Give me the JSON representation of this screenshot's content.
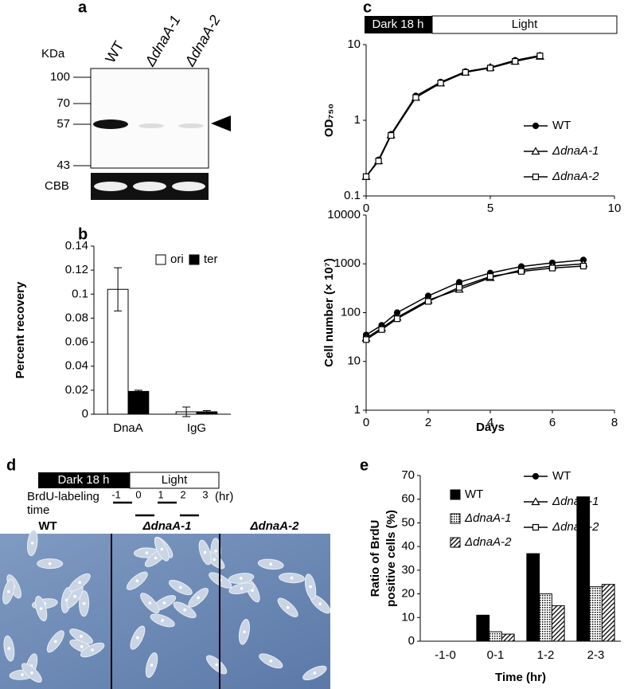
{
  "panel_labels": [
    "a",
    "b",
    "c",
    "d",
    "e"
  ],
  "blot": {
    "unit": "KDa",
    "lanes": [
      "WT",
      "ΔdnaA-1",
      "ΔdnaA-2"
    ],
    "markers": [
      100,
      70,
      57,
      43
    ],
    "loading_control": "CBB"
  },
  "schedule_c": {
    "dark": "Dark 18 h",
    "light": "Light"
  },
  "labeling": {
    "dark": "Dark 18 h",
    "light": "Light",
    "label": [
      "BrdU-labeling",
      "time"
    ],
    "times": [
      -1,
      0,
      1,
      2,
      3
    ],
    "unit": "(hr)"
  },
  "micrographs": [
    "WT",
    "ΔdnaA-1",
    "ΔdnaA-2"
  ],
  "chart_data": [
    {
      "type": "bar",
      "ylabel": "Percent recovery",
      "categories": [
        "DnaA",
        "IgG"
      ],
      "series": [
        {
          "name": "ori",
          "color": "#ffffff",
          "values": [
            0.104,
            0.002
          ],
          "errors": [
            0.018,
            0.004
          ]
        },
        {
          "name": "ter",
          "color": "#000000",
          "values": [
            0.019,
            0.002
          ],
          "errors": [
            0.001,
            0.001
          ]
        }
      ],
      "ylim": [
        0,
        0.14
      ],
      "yticks": [
        0,
        0.02,
        0.04,
        0.06,
        0.08,
        0.1,
        0.12,
        0.14
      ],
      "grid": false,
      "legend": "upper right"
    },
    {
      "type": "line",
      "ylabel": "OD₇₅₀",
      "log_y": true,
      "x": [
        0,
        0.5,
        1,
        2,
        3,
        4,
        5,
        6,
        7
      ],
      "series": [
        {
          "name": "WT",
          "color": "#000000",
          "marker": "circle",
          "values": [
            0.18,
            0.3,
            0.65,
            2.1,
            3.2,
            4.4,
            5.0,
            6.2,
            7.2
          ]
        },
        {
          "name": "ΔdnaA-1",
          "color": "#000000",
          "marker": "triangle",
          "values": [
            0.18,
            0.29,
            0.64,
            2.0,
            3.1,
            4.3,
            5.0,
            6.0,
            7.0
          ]
        },
        {
          "name": "ΔdnaA-2",
          "color": "#000000",
          "marker": "square",
          "values": [
            0.18,
            0.29,
            0.63,
            2.0,
            3.1,
            4.3,
            4.9,
            6.0,
            7.1
          ]
        }
      ],
      "xlim": [
        0,
        10
      ],
      "xticks": [
        0,
        5,
        10
      ],
      "ylim": [
        0.1,
        10
      ],
      "yticks": [
        0.1,
        1,
        10
      ],
      "grid": false,
      "legend": "lower right"
    },
    {
      "type": "line",
      "ylabel": "Cell number (× 10⁷)",
      "xlabel": "Days",
      "log_y": true,
      "x": [
        0,
        0.5,
        1,
        2,
        3,
        4,
        5,
        6,
        7
      ],
      "series": [
        {
          "name": "WT",
          "color": "#000000",
          "marker": "circle",
          "values": [
            35,
            55,
            100,
            220,
            420,
            650,
            880,
            1050,
            1200
          ]
        },
        {
          "name": "ΔdnaA-1",
          "color": "#000000",
          "marker": "triangle",
          "values": [
            30,
            48,
            80,
            180,
            300,
            520,
            750,
            900,
            1000
          ]
        },
        {
          "name": "ΔdnaA-2",
          "color": "#000000",
          "marker": "square",
          "values": [
            28,
            45,
            75,
            170,
            330,
            550,
            700,
            820,
            900
          ]
        }
      ],
      "xlim": [
        0,
        8
      ],
      "xticks": [
        0,
        2,
        4,
        6,
        8
      ],
      "ylim": [
        1,
        10000
      ],
      "yticks": [
        1,
        10,
        100,
        1000,
        10000
      ],
      "grid": false,
      "legend": "lower right"
    },
    {
      "type": "bar",
      "ylabel": [
        "Ratio of BrdU",
        "positive cells (%)"
      ],
      "xlabel": "Time (hr)",
      "categories": [
        "-1-0",
        "0-1",
        "1-2",
        "2-3"
      ],
      "series": [
        {
          "name": "WT",
          "color": "#000000",
          "values": [
            0,
            11,
            37,
            61
          ]
        },
        {
          "name": "ΔdnaA-1",
          "color": "#000000",
          "pattern": "dots",
          "values": [
            0,
            4,
            20,
            23
          ]
        },
        {
          "name": "ΔdnaA-2",
          "color": "#000000",
          "pattern": "hatch",
          "values": [
            0,
            3,
            15,
            24
          ]
        }
      ],
      "ylim": [
        0,
        70
      ],
      "yticks": [
        0,
        10,
        20,
        30,
        40,
        50,
        60,
        70
      ],
      "grid": false,
      "legend": "upper left"
    }
  ]
}
